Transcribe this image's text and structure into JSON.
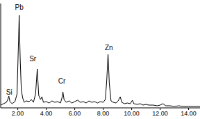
{
  "chart_data": {
    "type": "line",
    "x": [
      0.8,
      1.0,
      1.2,
      1.3,
      1.37,
      1.45,
      1.6,
      1.8,
      1.95,
      2.03,
      2.1,
      2.17,
      2.25,
      2.35,
      2.45,
      2.6,
      2.8,
      2.95,
      3.1,
      3.25,
      3.37,
      3.47,
      3.6,
      3.7,
      3.8,
      4.0,
      4.2,
      4.4,
      4.6,
      4.8,
      5.0,
      5.1,
      5.17,
      5.25,
      5.4,
      5.6,
      5.8,
      6.0,
      6.2,
      6.4,
      6.6,
      6.8,
      7.0,
      7.2,
      7.4,
      7.6,
      7.8,
      8.0,
      8.15,
      8.25,
      8.34,
      8.43,
      8.55,
      8.7,
      8.9,
      9.05,
      9.2,
      9.3,
      9.5,
      9.7,
      9.9,
      10.05,
      10.15,
      10.4,
      10.6,
      10.8,
      11.0,
      11.2,
      11.5,
      11.8,
      12.0,
      12.2,
      12.4,
      12.7,
      13.0,
      13.3,
      13.6,
      14.0,
      14.4,
      14.8
    ],
    "values": [
      4,
      6,
      8,
      12,
      17,
      9,
      6,
      9,
      20,
      80,
      133,
      70,
      25,
      14,
      8,
      10,
      9,
      12,
      8,
      20,
      56,
      18,
      12,
      16,
      8,
      9,
      7,
      10,
      8,
      9,
      7,
      14,
      23,
      12,
      8,
      10,
      7,
      9,
      11,
      8,
      9,
      7,
      10,
      8,
      9,
      7,
      9,
      8,
      12,
      40,
      77,
      35,
      10,
      8,
      7,
      10,
      16,
      8,
      6,
      7,
      6,
      11,
      6,
      5,
      6,
      4,
      5,
      4,
      4,
      3,
      4,
      6,
      3,
      3,
      2,
      3,
      2,
      2,
      2,
      2
    ],
    "color": "#000000",
    "xlim": [
      0.8,
      14.8
    ],
    "xticks": [
      {
        "value": 2,
        "label": "2.00"
      },
      {
        "value": 4,
        "label": "4.00"
      },
      {
        "value": 6,
        "label": "6.00"
      },
      {
        "value": 8,
        "label": "8.00"
      },
      {
        "value": 10,
        "label": "10.00"
      },
      {
        "value": 12,
        "label": "12.00"
      },
      {
        "value": 14,
        "label": "14.00"
      }
    ],
    "ylim": [
      0,
      150
    ],
    "tick_labels": "x",
    "grid": false,
    "annotations": [
      {
        "text": "Pb",
        "x": 2.1,
        "y": 145
      },
      {
        "text": "Si",
        "x": 1.4,
        "y": 23
      },
      {
        "text": "Sr",
        "x": 3.05,
        "y": 71
      },
      {
        "text": "Cr",
        "x": 5.1,
        "y": 39
      },
      {
        "text": "Zn",
        "x": 8.4,
        "y": 87
      }
    ]
  }
}
